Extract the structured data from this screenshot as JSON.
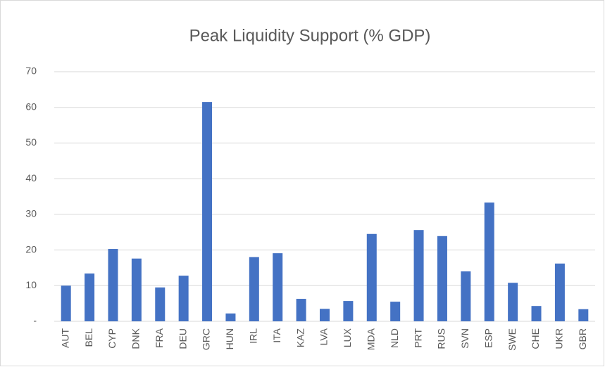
{
  "chart_data": {
    "type": "bar",
    "title": "Peak Liquidity Support (% GDP)",
    "categories": [
      "AUT",
      "BEL",
      "CYP",
      "DNK",
      "FRA",
      "DEU",
      "GRC",
      "HUN",
      "IRL",
      "ITA",
      "KAZ",
      "LVA",
      "LUX",
      "MDA",
      "NLD",
      "PRT",
      "RUS",
      "SVN",
      "ESP",
      "SWE",
      "CHE",
      "UKR",
      "GBR"
    ],
    "values": [
      10,
      13.4,
      20.3,
      17.6,
      9.5,
      12.8,
      61.5,
      2.2,
      18,
      19.1,
      6.3,
      3.5,
      5.7,
      24.5,
      5.5,
      25.6,
      23.9,
      14,
      33.3,
      10.8,
      4.3,
      16.2,
      3.4
    ],
    "color": "#4472c4",
    "ylim": [
      0,
      70
    ],
    "yticks": [
      {
        "value": 0,
        "label": "-"
      },
      10,
      20,
      30,
      40,
      50,
      60,
      70
    ],
    "grid": true
  }
}
